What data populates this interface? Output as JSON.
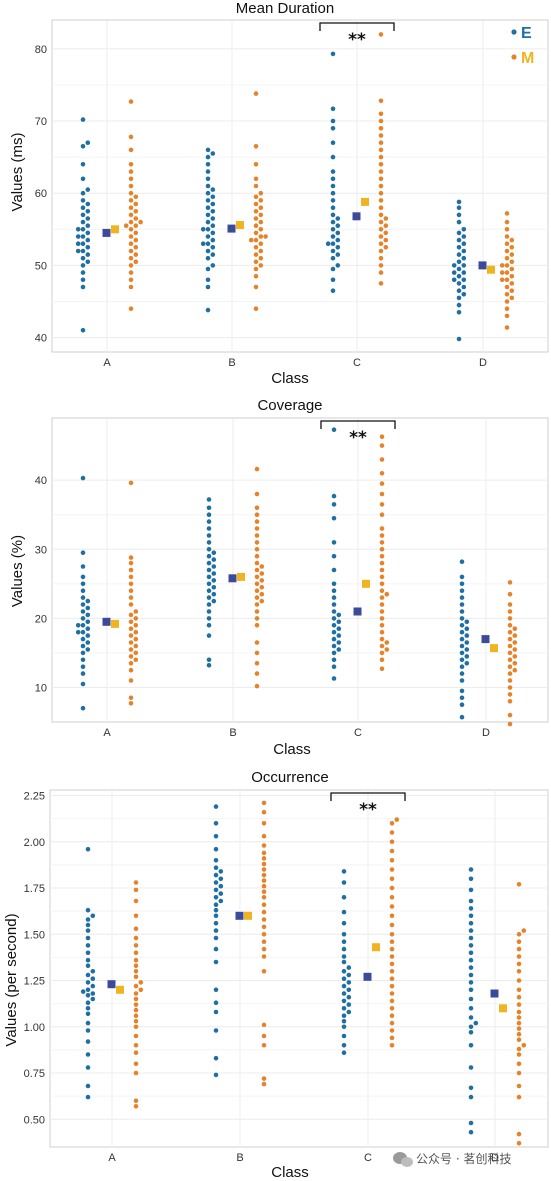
{
  "colors": {
    "E": "#1f6fa3",
    "M": "#e5832a",
    "mean_E": "#3c4a9a",
    "mean_M": "#efb420",
    "grid": "#ececec",
    "frame": "#cfcfcf"
  },
  "legend": {
    "E": "E",
    "M": "M"
  },
  "watermark": {
    "text": "公众号 · 茗创科技",
    "icon": "wechat-icon"
  },
  "chart_data": [
    {
      "type": "beeswarm",
      "title": "Mean Duration",
      "xlabel": "Class",
      "ylabel": "Values (ms)",
      "categories": [
        "A",
        "B",
        "C",
        "D"
      ],
      "ylim": [
        38,
        84
      ],
      "yticks": [
        40,
        50,
        60,
        70,
        80
      ],
      "grid": true,
      "legend_position": "top-right",
      "significance": {
        "category": "C",
        "label": "**"
      },
      "series": [
        {
          "name": "E",
          "mean": [
            54.5,
            55.1,
            56.8,
            50.0
          ],
          "values": [
            [
              41,
              47,
              48,
              49,
              50,
              50.5,
              51,
              51.5,
              52,
              52,
              52.5,
              53,
              53,
              53.5,
              54,
              54,
              54.5,
              55,
              55,
              55.5,
              56,
              56.5,
              57,
              57.5,
              58,
              58.5,
              59,
              60,
              60.5,
              62,
              64,
              66.5,
              67,
              70.2
            ],
            [
              43.8,
              47,
              48,
              49.5,
              50,
              51,
              51.5,
              52,
              52.5,
              53,
              53,
              53.5,
              54,
              54.5,
              55,
              55,
              55.5,
              56,
              56.5,
              57,
              57.5,
              58,
              58.5,
              59,
              59.5,
              60,
              60.5,
              61,
              62,
              63,
              64,
              65,
              65.5,
              66
            ],
            [
              46.5,
              48,
              49.5,
              50,
              51,
              51.5,
              52,
              52.5,
              53,
              53,
              53.5,
              54,
              54.5,
              55,
              55.5,
              56,
              56.5,
              57,
              58,
              59,
              60,
              61,
              62,
              63,
              65,
              67,
              69,
              70,
              71.7,
              79.3
            ],
            [
              39.8,
              43.5,
              44.5,
              45.5,
              46,
              46.5,
              47,
              47.5,
              48,
              48,
              48.5,
              49,
              49,
              49.5,
              50,
              50,
              50.5,
              51,
              51.5,
              52,
              52.5,
              53,
              53.5,
              54,
              54.5,
              55,
              56,
              57,
              58,
              58.8
            ]
          ]
        },
        {
          "name": "M",
          "mean": [
            55.0,
            55.6,
            58.8,
            49.4
          ],
          "values": [
            [
              44,
              47,
              48,
              49,
              50,
              50.5,
              51,
              51.5,
              52,
              52.5,
              53,
              53.5,
              54,
              54.5,
              55,
              55.5,
              55.5,
              56,
              56,
              56.5,
              57,
              57.5,
              58,
              58.5,
              59,
              59.5,
              60,
              61,
              62,
              63,
              64,
              66,
              67.8,
              72.7
            ],
            [
              44,
              47,
              48.5,
              49.5,
              50,
              50.5,
              51,
              51.5,
              52,
              52.5,
              53,
              53.5,
              53.5,
              54,
              54,
              54.5,
              55,
              55.5,
              56,
              56.5,
              57,
              57.5,
              58,
              58.5,
              59,
              59.5,
              60,
              61,
              62,
              64,
              66.5,
              73.8
            ],
            [
              47.5,
              49,
              50,
              51,
              52,
              52.5,
              53,
              53.5,
              54,
              54.5,
              55,
              55.5,
              56,
              56.5,
              57,
              58,
              59,
              60,
              61,
              62,
              63,
              64,
              65,
              66,
              67,
              68,
              69,
              70,
              71,
              72.8,
              82
            ],
            [
              41.4,
              43,
              44,
              45,
              45.5,
              46,
              46.5,
              47,
              47.5,
              48,
              48,
              48.5,
              49,
              49,
              49.5,
              50,
              50,
              50.5,
              51,
              51.5,
              52,
              52.5,
              53,
              53.5,
              54,
              55,
              56,
              57.2
            ]
          ]
        }
      ]
    },
    {
      "type": "beeswarm",
      "title": "Coverage",
      "xlabel": "Class",
      "ylabel": "Values (%)",
      "categories": [
        "A",
        "B",
        "C",
        "D"
      ],
      "ylim": [
        5,
        49
      ],
      "yticks": [
        10,
        20,
        30,
        40
      ],
      "grid": true,
      "significance": {
        "category": "C",
        "label": "**"
      },
      "series": [
        {
          "name": "E",
          "mean": [
            19.5,
            25.8,
            21.0,
            17.0
          ],
          "values": [
            [
              7,
              10.5,
              12,
              13,
              14,
              15,
              15.5,
              16,
              16.5,
              17,
              17.5,
              18,
              18,
              18.5,
              19,
              19,
              19.5,
              20,
              20.5,
              21,
              21.5,
              22,
              22.5,
              23,
              24,
              25,
              26,
              27.5,
              29.5,
              40.3
            ],
            [
              13.2,
              14,
              17.5,
              19,
              20,
              21,
              22,
              22.5,
              23,
              23.5,
              24,
              24.5,
              25,
              25.5,
              26,
              26.5,
              27,
              27.5,
              28,
              28.5,
              29,
              29.5,
              30,
              31,
              32,
              33,
              34,
              35,
              36,
              37.2
            ],
            [
              11.3,
              13,
              14,
              15,
              15.5,
              16,
              16.5,
              17,
              17.5,
              18,
              18.5,
              19,
              19.5,
              20,
              20.5,
              21,
              22,
              23,
              24,
              25,
              27,
              29,
              31,
              34.5,
              36.5,
              37.7,
              47.3
            ],
            [
              5.7,
              7.5,
              8.5,
              9.5,
              11,
              12,
              13,
              13.5,
              14,
              14.5,
              15,
              15.5,
              16,
              16.5,
              17,
              17.5,
              18,
              18.5,
              19,
              19.5,
              20,
              21,
              22,
              23,
              24,
              25,
              26,
              28.2
            ]
          ]
        },
        {
          "name": "M",
          "mean": [
            19.2,
            26.0,
            25.0,
            15.7
          ],
          "values": [
            [
              7.7,
              8.5,
              11,
              12.5,
              13.5,
              14,
              14.5,
              15,
              15.5,
              16,
              16.5,
              17,
              17.5,
              18,
              18.5,
              19,
              19.5,
              20,
              20.5,
              21,
              22,
              23,
              24,
              25,
              26,
              27,
              28,
              28.8,
              39.6
            ],
            [
              10.2,
              12,
              13.5,
              15,
              16.5,
              19,
              20,
              21,
              22,
              22.5,
              23,
              23.5,
              24,
              24.5,
              25,
              25.5,
              26,
              26.5,
              27,
              27.5,
              28,
              29,
              30,
              31,
              32,
              33,
              34,
              35,
              36,
              38,
              41.6
            ],
            [
              12.7,
              14,
              15,
              15.5,
              16,
              16.5,
              17,
              18,
              19,
              20,
              21,
              22,
              23,
              23.5,
              24,
              25,
              26,
              27,
              28,
              29,
              30,
              31,
              32,
              33,
              35,
              36.5,
              38,
              39.5,
              41,
              43,
              45,
              46.3
            ],
            [
              4.7,
              6,
              8,
              9,
              10,
              11,
              12,
              12.5,
              13,
              13.5,
              14,
              14.5,
              15,
              15.5,
              16,
              16.5,
              17,
              17.5,
              18,
              18.5,
              19,
              20,
              21,
              22,
              23.5,
              25.2
            ]
          ]
        }
      ]
    },
    {
      "type": "beeswarm",
      "title": "Occurrence",
      "xlabel": "Class",
      "ylabel": "Values (per second)",
      "categories": [
        "A",
        "B",
        "C",
        "D"
      ],
      "ylim": [
        0.35,
        2.28
      ],
      "yticks": [
        0.5,
        0.75,
        1.0,
        1.25,
        1.5,
        1.75,
        2.0,
        2.25
      ],
      "grid": true,
      "significance": {
        "category": "C",
        "label": "**"
      },
      "series": [
        {
          "name": "E",
          "mean": [
            1.23,
            1.6,
            1.27,
            1.18
          ],
          "values": [
            [
              0.62,
              0.68,
              0.78,
              0.85,
              0.92,
              0.98,
              1.02,
              1.07,
              1.1,
              1.13,
              1.15,
              1.17,
              1.18,
              1.19,
              1.2,
              1.22,
              1.24,
              1.26,
              1.28,
              1.3,
              1.33,
              1.36,
              1.4,
              1.44,
              1.48,
              1.52,
              1.55,
              1.58,
              1.6,
              1.63,
              1.96
            ],
            [
              0.74,
              0.83,
              0.98,
              1.08,
              1.13,
              1.2,
              1.35,
              1.42,
              1.48,
              1.52,
              1.56,
              1.6,
              1.63,
              1.66,
              1.68,
              1.7,
              1.72,
              1.74,
              1.76,
              1.78,
              1.8,
              1.82,
              1.84,
              1.86,
              1.9,
              1.96,
              2.03,
              2.1,
              2.19
            ],
            [
              0.86,
              0.9,
              0.95,
              1.0,
              1.03,
              1.06,
              1.08,
              1.1,
              1.12,
              1.14,
              1.16,
              1.18,
              1.2,
              1.22,
              1.24,
              1.26,
              1.28,
              1.3,
              1.32,
              1.35,
              1.38,
              1.42,
              1.46,
              1.5,
              1.56,
              1.62,
              1.7,
              1.78,
              1.84
            ],
            [
              0.43,
              0.48,
              0.62,
              0.67,
              0.78,
              0.9,
              0.97,
              1.0,
              1.02,
              1.05,
              1.1,
              1.15,
              1.2,
              1.24,
              1.28,
              1.32,
              1.36,
              1.4,
              1.44,
              1.48,
              1.52,
              1.56,
              1.6,
              1.64,
              1.68,
              1.74,
              1.8,
              1.85
            ]
          ]
        },
        {
          "name": "M",
          "mean": [
            1.2,
            1.6,
            1.43,
            1.1
          ],
          "values": [
            [
              0.57,
              0.6,
              0.75,
              0.8,
              0.86,
              0.9,
              0.95,
              1.0,
              1.03,
              1.06,
              1.09,
              1.12,
              1.15,
              1.18,
              1.2,
              1.22,
              1.24,
              1.27,
              1.3,
              1.33,
              1.36,
              1.4,
              1.44,
              1.48,
              1.53,
              1.6,
              1.68,
              1.74,
              1.78
            ],
            [
              0.69,
              0.72,
              0.9,
              0.95,
              1.01,
              1.3,
              1.38,
              1.42,
              1.46,
              1.5,
              1.54,
              1.58,
              1.62,
              1.66,
              1.7,
              1.73,
              1.76,
              1.79,
              1.82,
              1.85,
              1.88,
              1.91,
              1.94,
              1.98,
              2.03,
              2.1,
              2.16,
              2.21
            ],
            [
              0.9,
              0.94,
              0.98,
              1.02,
              1.06,
              1.1,
              1.14,
              1.18,
              1.22,
              1.26,
              1.3,
              1.34,
              1.38,
              1.42,
              1.46,
              1.5,
              1.55,
              1.6,
              1.65,
              1.7,
              1.75,
              1.8,
              1.85,
              1.9,
              1.95,
              2.0,
              2.05,
              2.1,
              2.12
            ],
            [
              0.37,
              0.42,
              0.62,
              0.68,
              0.75,
              0.8,
              0.85,
              0.88,
              0.9,
              0.93,
              0.96,
              0.99,
              1.02,
              1.05,
              1.08,
              1.12,
              1.16,
              1.2,
              1.25,
              1.3,
              1.34,
              1.38,
              1.42,
              1.46,
              1.5,
              1.52,
              1.77
            ]
          ]
        }
      ]
    }
  ]
}
